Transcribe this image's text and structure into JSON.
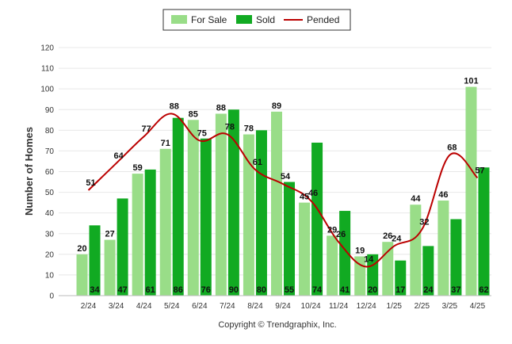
{
  "chart_data": {
    "type": "bar",
    "categories": [
      "2/24",
      "3/24",
      "4/24",
      "5/24",
      "6/24",
      "7/24",
      "8/24",
      "9/24",
      "10/24",
      "11/24",
      "12/24",
      "1/25",
      "2/25",
      "3/25",
      "4/25"
    ],
    "series": [
      {
        "name": "For Sale",
        "type": "bar",
        "color": "#99dd88",
        "values": [
          20,
          27,
          59,
          71,
          85,
          88,
          78,
          89,
          45,
          29,
          19,
          26,
          44,
          46,
          101
        ]
      },
      {
        "name": "Sold",
        "type": "bar",
        "color": "#11aa22",
        "values": [
          34,
          47,
          61,
          86,
          76,
          90,
          80,
          55,
          74,
          41,
          20,
          17,
          24,
          37,
          62
        ]
      },
      {
        "name": "Pended",
        "type": "line",
        "color": "#bb0000",
        "values": [
          51,
          64,
          77,
          88,
          75,
          78,
          61,
          54,
          46,
          26,
          14,
          24,
          32,
          68,
          57
        ]
      }
    ],
    "title": "",
    "xlabel": "",
    "ylabel": "Number of Homes",
    "ylim": [
      0,
      120
    ],
    "yticks": [
      0,
      10,
      20,
      30,
      40,
      50,
      60,
      70,
      80,
      90,
      100,
      110,
      120
    ],
    "grid": true,
    "legend_position": "top-center"
  },
  "footer": "Copyright © Trendgraphix, Inc."
}
